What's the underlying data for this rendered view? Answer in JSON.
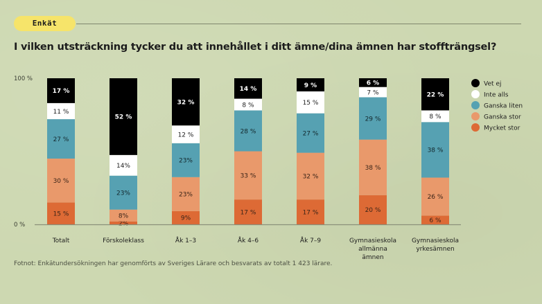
{
  "header": {
    "badge": "Enkät",
    "title": "I vilken utsträckning tycker du att innehållet i ditt ämne/dina ämnen har stoffträngsel?"
  },
  "footnote": "Fotnot: Enkätundersökningen har genomförts av Sveriges Lärare och besvarats av totalt 1 423 lärare.",
  "chart_data": {
    "type": "bar",
    "stacked": true,
    "title": "I vilken utsträckning tycker du att innehållet i ditt ämne/dina ämnen har stoffträngsel?",
    "xlabel": "",
    "ylabel": "",
    "ylim": [
      0,
      100
    ],
    "yticks": [
      {
        "value": 0,
        "label": "0 %"
      },
      {
        "value": 100,
        "label": "100 %"
      }
    ],
    "grid": false,
    "legend_position": "right",
    "categories": [
      [
        "Totalt"
      ],
      [
        "Förskoleklass"
      ],
      [
        "Åk 1–3"
      ],
      [
        "Åk 4–6"
      ],
      [
        "Åk 7–9"
      ],
      [
        "Gymnasieskola",
        "allmänna",
        "ämnen"
      ],
      [
        "Gymnasieskola",
        "yrkesämnen"
      ]
    ],
    "series": [
      {
        "name": "Mycket stor",
        "color": "#dd6a35",
        "text_color": "#3a2418",
        "values": [
          15,
          2,
          9,
          17,
          17,
          20,
          6
        ],
        "labels": [
          "15 %",
          "2%",
          "9%",
          "17 %",
          "17 %",
          "20 %",
          "6 %"
        ]
      },
      {
        "name": "Ganska stor",
        "color": "#e9996b",
        "text_color": "#3a2418",
        "values": [
          30,
          8,
          23,
          33,
          32,
          38,
          26
        ],
        "labels": [
          "30 %",
          "8%",
          "23%",
          "33 %",
          "32 %",
          "38 %",
          "26 %"
        ]
      },
      {
        "name": "Ganska liten",
        "color": "#56a1b2",
        "text_color": "#13272c",
        "values": [
          27,
          23,
          23,
          28,
          27,
          29,
          38
        ],
        "labels": [
          "27 %",
          "23%",
          "23%",
          "28 %",
          "27 %",
          "29 %",
          "38 %"
        ]
      },
      {
        "name": "Inte alls",
        "color": "#ffffff",
        "text_color": "#1c1c1c",
        "values": [
          11,
          14,
          12,
          8,
          15,
          7,
          8
        ],
        "labels": [
          "11 %",
          "14%",
          "12 %",
          "8 %",
          "15 %",
          "7 %",
          "8 %"
        ]
      },
      {
        "name": "Vet ej",
        "color": "#000000",
        "text_color": "#ffffff",
        "values": [
          17,
          52,
          32,
          14,
          9,
          6,
          22
        ],
        "labels": [
          "17 %",
          "52 %",
          "32 %",
          "14 %",
          "9 %",
          "6 %",
          "22 %"
        ]
      }
    ],
    "legend": [
      "Vet ej",
      "Inte alls",
      "Ganska liten",
      "Ganska stor",
      "Mycket stor"
    ]
  }
}
